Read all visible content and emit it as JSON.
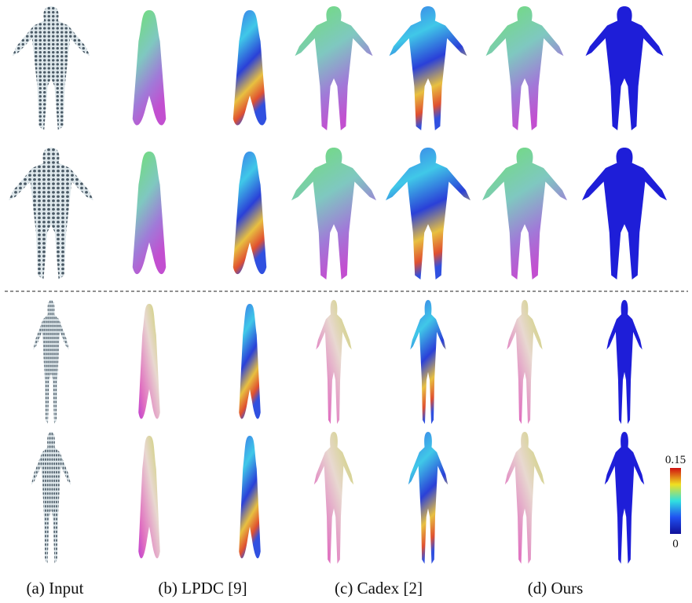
{
  "captions": [
    "(a) Input",
    "(b) LPDC [9]",
    "(c) Cadex [2]",
    "(d) Ours"
  ],
  "colorbar": {
    "max": "0.15",
    "min": "0"
  }
}
